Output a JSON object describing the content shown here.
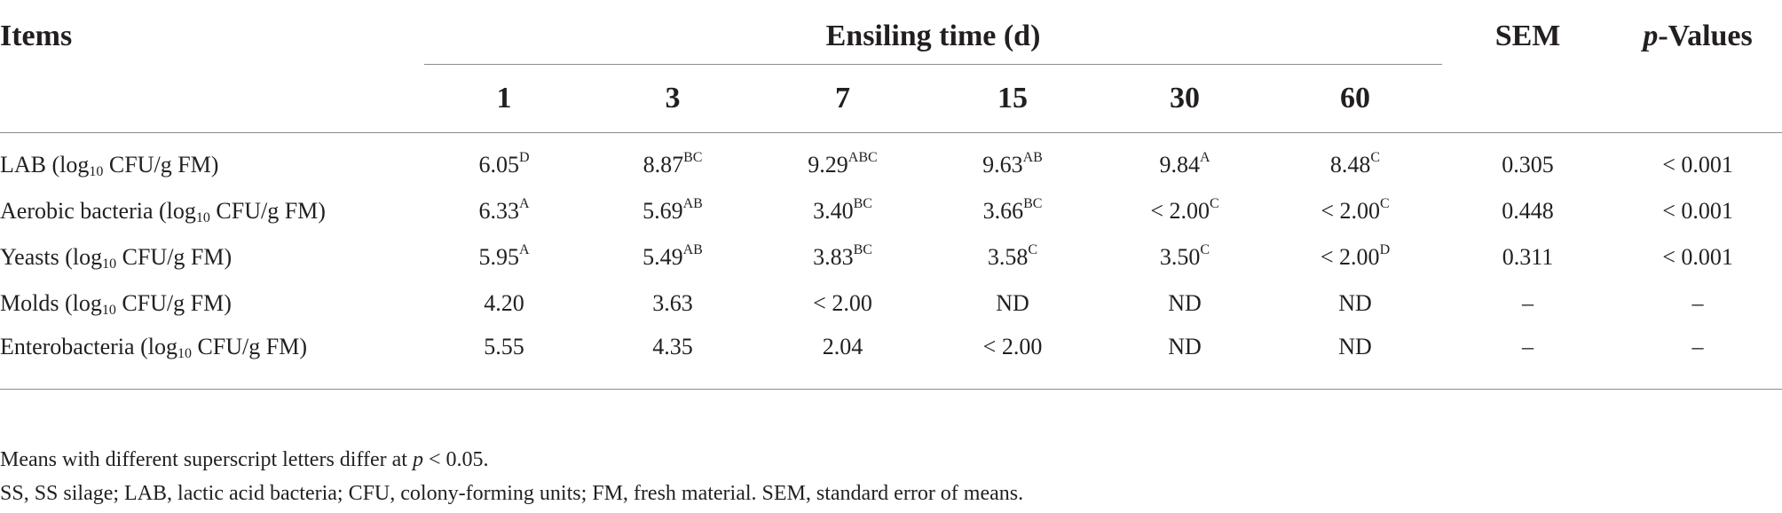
{
  "table": {
    "header": {
      "items": "Items",
      "group": "Ensiling time (d)",
      "sem": "SEM",
      "pvalues_italic": "p",
      "pvalues_rest": "-Values",
      "days": [
        "1",
        "3",
        "7",
        "15",
        "30",
        "60"
      ]
    },
    "rows": [
      {
        "label_pre": "LAB (log",
        "label_sub": "10",
        "label_post": " CFU/g FM)",
        "cells": [
          {
            "v": "6.05",
            "s": "D"
          },
          {
            "v": "8.87",
            "s": "BC"
          },
          {
            "v": "9.29",
            "s": "ABC"
          },
          {
            "v": "9.63",
            "s": "AB"
          },
          {
            "v": "9.84",
            "s": "A"
          },
          {
            "v": "8.48",
            "s": "C"
          }
        ],
        "sem": "0.305",
        "p": "< 0.001"
      },
      {
        "label_pre": "Aerobic bacteria (log",
        "label_sub": "10",
        "label_post": " CFU/g FM)",
        "cells": [
          {
            "v": "6.33",
            "s": "A"
          },
          {
            "v": "5.69",
            "s": "AB"
          },
          {
            "v": "3.40",
            "s": "BC"
          },
          {
            "v": "3.66",
            "s": "BC"
          },
          {
            "v": "< 2.00",
            "s": "C"
          },
          {
            "v": "< 2.00",
            "s": "C"
          }
        ],
        "sem": "0.448",
        "p": "< 0.001"
      },
      {
        "label_pre": "Yeasts (log",
        "label_sub": "10",
        "label_post": " CFU/g FM)",
        "cells": [
          {
            "v": "5.95",
            "s": "A"
          },
          {
            "v": "5.49",
            "s": "AB"
          },
          {
            "v": "3.83",
            "s": "BC"
          },
          {
            "v": "3.58",
            "s": "C"
          },
          {
            "v": "3.50",
            "s": "C"
          },
          {
            "v": "< 2.00",
            "s": "D"
          }
        ],
        "sem": "0.311",
        "p": "< 0.001"
      },
      {
        "label_pre": "Molds (log",
        "label_sub": "10",
        "label_post": " CFU/g FM)",
        "cells": [
          {
            "v": "4.20",
            "s": ""
          },
          {
            "v": "3.63",
            "s": ""
          },
          {
            "v": "< 2.00",
            "s": ""
          },
          {
            "v": "ND",
            "s": ""
          },
          {
            "v": "ND",
            "s": ""
          },
          {
            "v": "ND",
            "s": ""
          }
        ],
        "sem": "–",
        "p": "–"
      },
      {
        "label_pre": "Enterobacteria (log",
        "label_sub": "10",
        "label_post": " CFU/g FM)",
        "cells": [
          {
            "v": "5.55",
            "s": ""
          },
          {
            "v": "4.35",
            "s": ""
          },
          {
            "v": "2.04",
            "s": ""
          },
          {
            "v": "< 2.00",
            "s": ""
          },
          {
            "v": "ND",
            "s": ""
          },
          {
            "v": "ND",
            "s": ""
          }
        ],
        "sem": "–",
        "p": "–"
      }
    ]
  },
  "footnotes": {
    "line1_pre": "Means with different superscript letters differ at ",
    "line1_italic": "p",
    "line1_post": " < 0.05.",
    "line2": "SS, SS silage; LAB, lactic acid bacteria; CFU, colony-forming units; FM, fresh material. SEM, standard error of means."
  }
}
